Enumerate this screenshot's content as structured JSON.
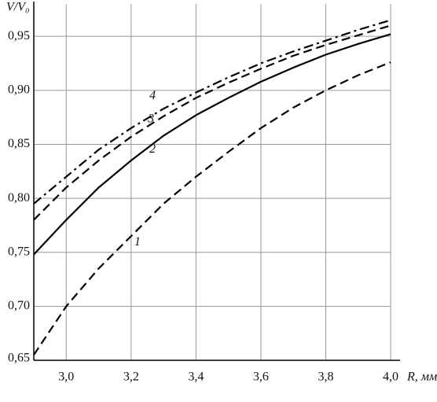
{
  "chart_data": {
    "type": "line",
    "ylabel": "V/V₀",
    "xlabel": "R, мм",
    "x": [
      2.9,
      3.0,
      3.1,
      3.2,
      3.3,
      3.4,
      3.5,
      3.6,
      3.7,
      3.8,
      3.9,
      4.0
    ],
    "series": [
      {
        "name": "1",
        "color": "#000000",
        "style": "dashed",
        "values": [
          0.655,
          0.7,
          0.735,
          0.765,
          0.795,
          0.82,
          0.843,
          0.865,
          0.884,
          0.9,
          0.914,
          0.926
        ]
      },
      {
        "name": "2",
        "color": "#000000",
        "style": "solid",
        "values": [
          0.748,
          0.78,
          0.81,
          0.835,
          0.858,
          0.877,
          0.893,
          0.908,
          0.921,
          0.933,
          0.943,
          0.952
        ]
      },
      {
        "name": "3",
        "color": "#000000",
        "style": "dashed",
        "values": [
          0.78,
          0.81,
          0.835,
          0.857,
          0.876,
          0.893,
          0.907,
          0.92,
          0.932,
          0.942,
          0.951,
          0.96
        ]
      },
      {
        "name": "4",
        "color": "#000000",
        "style": "dashdot",
        "values": [
          0.795,
          0.82,
          0.845,
          0.865,
          0.883,
          0.898,
          0.912,
          0.925,
          0.936,
          0.946,
          0.956,
          0.965
        ]
      }
    ],
    "xlim": [
      2.9,
      4.0
    ],
    "xticks": [
      {
        "value": 3.0,
        "label": "3,0"
      },
      {
        "value": 3.2,
        "label": "3,2"
      },
      {
        "value": 3.4,
        "label": "3,4"
      },
      {
        "value": 3.6,
        "label": "3,6"
      },
      {
        "value": 3.8,
        "label": "3,8"
      },
      {
        "value": 4.0,
        "label": "4,0"
      }
    ],
    "ylim": [
      0.65,
      0.98
    ],
    "yticks": [
      {
        "value": 0.65,
        "label": "0,65"
      },
      {
        "value": 0.7,
        "label": "0,70"
      },
      {
        "value": 0.75,
        "label": "0,75"
      },
      {
        "value": 0.8,
        "label": "0,80"
      },
      {
        "value": 0.85,
        "label": "0,85"
      },
      {
        "value": 0.9,
        "label": "0,90"
      },
      {
        "value": 0.95,
        "label": "0,95"
      }
    ],
    "grid": true
  }
}
